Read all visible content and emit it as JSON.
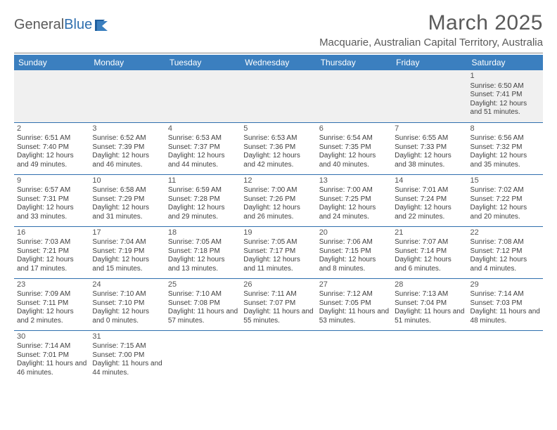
{
  "logo": {
    "text_left": "General",
    "text_right": "Blue"
  },
  "title": "March 2025",
  "location": "Macquarie, Australian Capital Territory, Australia",
  "colors": {
    "header_bg": "#3b7fbf",
    "header_text": "#ffffff",
    "body_text": "#404040",
    "rule": "#2f6fae",
    "page_bg": "#ffffff",
    "muted_bg": "#f0f0f0"
  },
  "day_headers": [
    "Sunday",
    "Monday",
    "Tuesday",
    "Wednesday",
    "Thursday",
    "Friday",
    "Saturday"
  ],
  "weeks": [
    [
      null,
      null,
      null,
      null,
      null,
      null,
      {
        "n": "1",
        "sunrise": "6:50 AM",
        "sunset": "7:41 PM",
        "daylight": "12 hours and 51 minutes."
      }
    ],
    [
      {
        "n": "2",
        "sunrise": "6:51 AM",
        "sunset": "7:40 PM",
        "daylight": "12 hours and 49 minutes."
      },
      {
        "n": "3",
        "sunrise": "6:52 AM",
        "sunset": "7:39 PM",
        "daylight": "12 hours and 46 minutes."
      },
      {
        "n": "4",
        "sunrise": "6:53 AM",
        "sunset": "7:37 PM",
        "daylight": "12 hours and 44 minutes."
      },
      {
        "n": "5",
        "sunrise": "6:53 AM",
        "sunset": "7:36 PM",
        "daylight": "12 hours and 42 minutes."
      },
      {
        "n": "6",
        "sunrise": "6:54 AM",
        "sunset": "7:35 PM",
        "daylight": "12 hours and 40 minutes."
      },
      {
        "n": "7",
        "sunrise": "6:55 AM",
        "sunset": "7:33 PM",
        "daylight": "12 hours and 38 minutes."
      },
      {
        "n": "8",
        "sunrise": "6:56 AM",
        "sunset": "7:32 PM",
        "daylight": "12 hours and 35 minutes."
      }
    ],
    [
      {
        "n": "9",
        "sunrise": "6:57 AM",
        "sunset": "7:31 PM",
        "daylight": "12 hours and 33 minutes."
      },
      {
        "n": "10",
        "sunrise": "6:58 AM",
        "sunset": "7:29 PM",
        "daylight": "12 hours and 31 minutes."
      },
      {
        "n": "11",
        "sunrise": "6:59 AM",
        "sunset": "7:28 PM",
        "daylight": "12 hours and 29 minutes."
      },
      {
        "n": "12",
        "sunrise": "7:00 AM",
        "sunset": "7:26 PM",
        "daylight": "12 hours and 26 minutes."
      },
      {
        "n": "13",
        "sunrise": "7:00 AM",
        "sunset": "7:25 PM",
        "daylight": "12 hours and 24 minutes."
      },
      {
        "n": "14",
        "sunrise": "7:01 AM",
        "sunset": "7:24 PM",
        "daylight": "12 hours and 22 minutes."
      },
      {
        "n": "15",
        "sunrise": "7:02 AM",
        "sunset": "7:22 PM",
        "daylight": "12 hours and 20 minutes."
      }
    ],
    [
      {
        "n": "16",
        "sunrise": "7:03 AM",
        "sunset": "7:21 PM",
        "daylight": "12 hours and 17 minutes."
      },
      {
        "n": "17",
        "sunrise": "7:04 AM",
        "sunset": "7:19 PM",
        "daylight": "12 hours and 15 minutes."
      },
      {
        "n": "18",
        "sunrise": "7:05 AM",
        "sunset": "7:18 PM",
        "daylight": "12 hours and 13 minutes."
      },
      {
        "n": "19",
        "sunrise": "7:05 AM",
        "sunset": "7:17 PM",
        "daylight": "12 hours and 11 minutes."
      },
      {
        "n": "20",
        "sunrise": "7:06 AM",
        "sunset": "7:15 PM",
        "daylight": "12 hours and 8 minutes."
      },
      {
        "n": "21",
        "sunrise": "7:07 AM",
        "sunset": "7:14 PM",
        "daylight": "12 hours and 6 minutes."
      },
      {
        "n": "22",
        "sunrise": "7:08 AM",
        "sunset": "7:12 PM",
        "daylight": "12 hours and 4 minutes."
      }
    ],
    [
      {
        "n": "23",
        "sunrise": "7:09 AM",
        "sunset": "7:11 PM",
        "daylight": "12 hours and 2 minutes."
      },
      {
        "n": "24",
        "sunrise": "7:10 AM",
        "sunset": "7:10 PM",
        "daylight": "12 hours and 0 minutes."
      },
      {
        "n": "25",
        "sunrise": "7:10 AM",
        "sunset": "7:08 PM",
        "daylight": "11 hours and 57 minutes."
      },
      {
        "n": "26",
        "sunrise": "7:11 AM",
        "sunset": "7:07 PM",
        "daylight": "11 hours and 55 minutes."
      },
      {
        "n": "27",
        "sunrise": "7:12 AM",
        "sunset": "7:05 PM",
        "daylight": "11 hours and 53 minutes."
      },
      {
        "n": "28",
        "sunrise": "7:13 AM",
        "sunset": "7:04 PM",
        "daylight": "11 hours and 51 minutes."
      },
      {
        "n": "29",
        "sunrise": "7:14 AM",
        "sunset": "7:03 PM",
        "daylight": "11 hours and 48 minutes."
      }
    ],
    [
      {
        "n": "30",
        "sunrise": "7:14 AM",
        "sunset": "7:01 PM",
        "daylight": "11 hours and 46 minutes."
      },
      {
        "n": "31",
        "sunrise": "7:15 AM",
        "sunset": "7:00 PM",
        "daylight": "11 hours and 44 minutes."
      },
      null,
      null,
      null,
      null,
      null
    ]
  ],
  "labels": {
    "sunrise": "Sunrise:",
    "sunset": "Sunset:",
    "daylight": "Daylight:"
  }
}
